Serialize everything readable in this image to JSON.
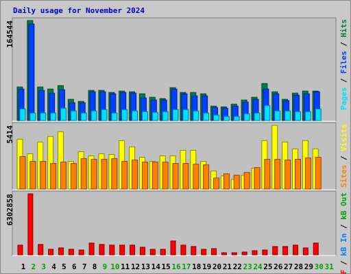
{
  "chart_data": [
    {
      "type": "bar",
      "title": "Daily usage for November 2024",
      "separator": "/",
      "ylim": [
        0,
        164544
      ],
      "yticks": [
        164544
      ],
      "series": [
        {
          "name": "Hits",
          "color": "#008040",
          "values": [
            55200,
            164544,
            55200,
            51800,
            57500,
            34900,
            31500,
            49600,
            49600,
            46200,
            48500,
            47300,
            44000,
            38300,
            36100,
            54100,
            46200,
            46200,
            44000,
            23700,
            22500,
            27000,
            33800,
            38300,
            60900,
            47300,
            34900,
            45100,
            48500,
            48500,
            null
          ]
        },
        {
          "name": "Files",
          "color": "#0040FF",
          "values": [
            51800,
            158900,
            49600,
            45100,
            50700,
            29300,
            29300,
            47300,
            47300,
            44000,
            46200,
            45100,
            37200,
            33800,
            33800,
            51800,
            44000,
            40600,
            40600,
            21400,
            20300,
            23700,
            30400,
            34900,
            51800,
            44000,
            32700,
            41700,
            44000,
            47300,
            null
          ]
        },
        {
          "name": "Pages",
          "color": "#00E0FF",
          "values": [
            19200,
            12400,
            12400,
            12400,
            20300,
            15800,
            12400,
            15800,
            18000,
            12400,
            18000,
            15800,
            14700,
            13500,
            14700,
            18000,
            18000,
            15800,
            12400,
            9000,
            6800,
            6800,
            11300,
            12400,
            24800,
            15800,
            15800,
            14700,
            14700,
            19200,
            null
          ]
        }
      ]
    },
    {
      "type": "bar",
      "separator": "/",
      "ylim": [
        0,
        5414
      ],
      "yticks": [
        5414
      ],
      "series": [
        {
          "name": "Visits",
          "color": "#FFFF00",
          "values": [
            4234,
            2999,
            3998,
            4469,
            4880,
            2352,
            3175,
            2822,
            2999,
            2940,
            4116,
            3587,
            2705,
            2352,
            2822,
            2822,
            3293,
            3293,
            2352,
            1529,
            1117,
            823,
            1176,
            1764,
            4116,
            5414,
            3998,
            3410,
            4116,
            3410,
            null
          ]
        },
        {
          "name": "Sites",
          "color": "#FF8000",
          "values": [
            2764,
            2352,
            2352,
            2176,
            2293,
            2176,
            2587,
            2528,
            2528,
            2587,
            2352,
            2470,
            2293,
            2293,
            2293,
            2176,
            2176,
            2117,
            2058,
            941,
            1294,
            1176,
            1411,
            1823,
            2528,
            2528,
            2470,
            2528,
            2646,
            2705,
            null
          ]
        }
      ]
    },
    {
      "type": "bar",
      "separator": "/",
      "ylim": [
        0,
        6302858
      ],
      "yticks": [
        6302858
      ],
      "categories": [
        "1",
        "2",
        "3",
        "4",
        "5",
        "6",
        "7",
        "8",
        "9",
        "10",
        "11",
        "12",
        "13",
        "14",
        "15",
        "16",
        "17",
        "18",
        "19",
        "20",
        "21",
        "22",
        "23",
        "24",
        "25",
        "26",
        "27",
        "28",
        "29",
        "30",
        "31"
      ],
      "label_colors": [
        "#000000",
        "#00A000",
        "#00A000",
        "#000000",
        "#000000",
        "#000000",
        "#000000",
        "#000000",
        "#00A000",
        "#00A000",
        "#000000",
        "#000000",
        "#000000",
        "#000000",
        "#000000",
        "#00A000",
        "#00A000",
        "#000000",
        "#000000",
        "#000000",
        "#000000",
        "#000000",
        "#00A000",
        "#00A000",
        "#000000",
        "#000000",
        "#000000",
        "#000000",
        "#000000",
        "#00A000",
        "#00A000"
      ],
      "series": [
        {
          "name": "kB F",
          "color": "#FF0000",
          "values": [
            1002700,
            6302858,
            1074300,
            573000,
            716200,
            573000,
            501400,
            1217600,
            1074300,
            1002700,
            1002700,
            1002700,
            787900,
            573000,
            573000,
            1432500,
            1002700,
            859500,
            573000,
            644600,
            214900,
            214900,
            286500,
            429700,
            501400,
            859500,
            859500,
            1002700,
            716200,
            1217600,
            null
          ]
        }
      ],
      "legend_extra": [
        {
          "name": "kB In",
          "color": "#0080FF"
        },
        {
          "name": "kB Out",
          "color": "#00A000"
        }
      ]
    }
  ]
}
